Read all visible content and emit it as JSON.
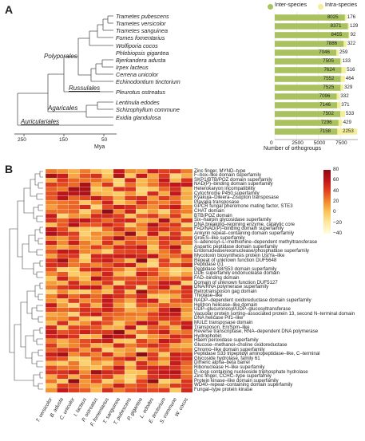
{
  "panelA": {
    "label": "A",
    "species": [
      "Trametes pubescens",
      "Trametes versicolor",
      "Trametes sanguinea",
      "Fomes fomentarius",
      "Wolfiporia cocos",
      "Phlebiopsis gigantea",
      "Bjerkandera adusta",
      "Irpex lacteus",
      "Cerrena unicolor",
      "Echinodontium tinctorium",
      "Pleurotus ostreatus",
      "Lentinula edodes",
      "Schizophyllum commune",
      "Exidia glandulosa"
    ],
    "clades": [
      "Polyporales",
      "Russulales",
      "Agaricales",
      "Auriculariales"
    ],
    "tree_axis": {
      "ticks": [
        "250",
        "150",
        "50"
      ],
      "label": "Mya"
    },
    "bar_axis": {
      "ticks": [
        "0",
        "2500",
        "5000",
        "7500"
      ],
      "label": "Number of orthogroups"
    },
    "legend": [
      "Inter-species",
      "Intra-species"
    ],
    "colors": {
      "inter": "#a9c25f",
      "intra": "#f3ee97"
    }
  },
  "chart_data": {
    "type": "bar",
    "categories": [
      "Trametes pubescens",
      "Trametes versicolor",
      "Trametes sanguinea",
      "Fomes fomentarius",
      "Wolfiporia cocos",
      "Phlebiopsis gigantea",
      "Bjerkandera adusta",
      "Irpex lacteus",
      "Cerrena unicolor",
      "Echinodontium tinctorium",
      "Pleurotus ostreatus",
      "Lentinula edodes",
      "Schizophyllum commune",
      "Exidia glandulosa"
    ],
    "series": [
      {
        "name": "Inter-species",
        "values": [
          8025,
          8371,
          8455,
          7886,
          7046,
          7505,
          7624,
          7552,
          7525,
          7096,
          7146,
          7502,
          7296,
          7158
        ]
      },
      {
        "name": "Intra-species",
        "values": [
          176,
          129,
          92,
          322,
          259,
          133,
          516,
          464,
          329,
          332,
          371,
          533,
          429,
          2253
        ]
      }
    ],
    "xlabel": "Number of orthogroups",
    "xlim": [
      0,
      9500
    ],
    "stacked": true
  },
  "panelB": {
    "label": "B",
    "rows": [
      "Zinc finger, MYND–type",
      "F–box–like domain superfamily",
      "SKP1/BTB/POZ domain superfamily",
      "NAD(P)–binding domain superfamily",
      "Heterokaryon incompatibility",
      "Cytochrome P450 superfamily",
      "Kyakuja–Dileera–Zisupton transposase",
      "Plavaka transposase",
      "GPCR fungal pheromone mating factor, STE3",
      "CHAT domain",
      "BTB/POZ domain",
      "Six–hairpin glycosidase superfamily",
      "DNA breaking–rejoining enzyme, catalytic core",
      "FAD/NAD(P)–binding domain superfamily",
      "Ankyrin repeat–containing domain superfamily",
      "GroES–like superfamily",
      "S–adenosyl–L–methionine–dependent methyltransferase",
      "Aspartic peptidase domain superfamily",
      "Endonuclease/exonuclease/phosphatase superfamily",
      "Mycotoxin biosynthesis protein UstYa–like",
      "Repeat of unknown function DUF5648",
      "Peptidase G1",
      "Peptidase S8/S53 domain superfamily",
      "DDE superfamily endonuclease domain",
      "FAD–binding domain",
      "Domain of unknown function DUF5127",
      "DNA/RNA polymerase superfamily",
      "Retrotransposon gag domain",
      "Thiolase–like",
      "NADP–dependent oxidoreductase domain superfamily",
      "Helitron helicase–like domain",
      "UDP–glucuronosyl/UDP–glucosyltransferase",
      "Vacuolar protein sorting–associated protein 13, second N–terminal domain",
      "DNA helicase Pif1–like",
      "MULE transposase domain",
      "Transposon, En/Spm–like",
      "Reverse transcriptase, RNA–dependent DNA polymerase",
      "Hydrophobin",
      "Haem peroxidase superfamily",
      "Glucose–methanol–choline oxidoreductase",
      "Chromo–like domain superfamily",
      "Peptidase S33 tripeptidyl aminopeptidase–like, C–terminal",
      "Glycoside hydrolase, family 61",
      "Dimeric alpha–beta barrel",
      "Ribonuclease H–like superfamily",
      "P–loop containing nucleoside triphosphate hydrolase",
      "Zinc finger, CCHC–type superfamily",
      "Protein kinase–like domain superfamily",
      "WD40–repeat–containing domain superfamily",
      "Fungal–type protein kinase"
    ],
    "columns": [
      "T. versicolor",
      "B. adusta",
      "C. unicolor",
      "I. lacteus",
      "P. ostreatus",
      "F. fomentarius",
      "T. sanguinea",
      "T. pubescens",
      "P. gigantea",
      "L. edodes",
      "E. tinctorium",
      "S. commune",
      "W. cocos"
    ],
    "colorbar": {
      "ticks": [
        "80",
        "60",
        "40",
        "20",
        "0",
        "−20",
        "−40"
      ],
      "min": -40,
      "max": 80
    }
  }
}
